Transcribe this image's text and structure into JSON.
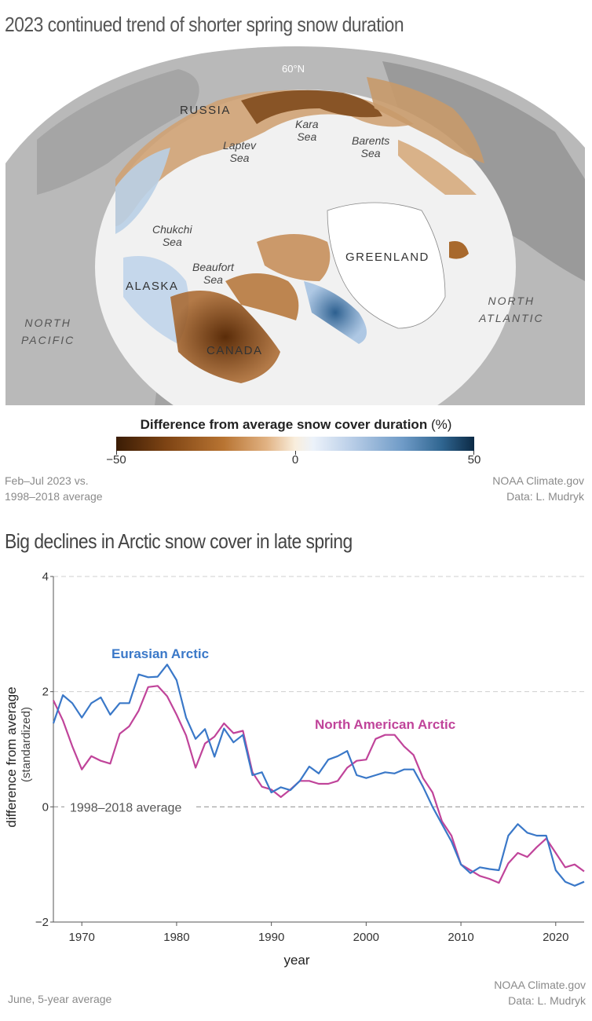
{
  "map": {
    "title": "2023 continued trend of shorter spring snow duration",
    "latitude_label": "60°N",
    "labels": {
      "russia": "RUSSIA",
      "kara_1": "Kara",
      "kara_2": "Sea",
      "barents_1": "Barents",
      "barents_2": "Sea",
      "laptev_1": "Laptev",
      "laptev_2": "Sea",
      "chukchi_1": "Chukchi",
      "chukchi_2": "Sea",
      "beaufort_1": "Beaufort",
      "beaufort_2": "Sea",
      "alaska": "ALASKA",
      "greenland": "GREENLAND",
      "canada": "CANADA",
      "north_pacific_1": "NORTH",
      "north_pacific_2": "PACIFIC",
      "north_atlantic_1": "NORTH",
      "north_atlantic_2": "ATLANTIC"
    },
    "legend": {
      "title_bold": "Difference from average snow cover duration",
      "title_unit": "(%)",
      "min_label": "−50",
      "mid_label": "0",
      "max_label": "50"
    },
    "footnote_left_1": "Feb–Jul 2023 vs.",
    "footnote_left_2": "1998–2018 average",
    "footnote_right_1": "NOAA Climate.gov",
    "footnote_right_2": "Data: L. Mudryk",
    "colors": {
      "negative": "#7a3f10",
      "positive": "#1f4f78",
      "ocean": "#bdbdbd",
      "neutral": "#f4f4f4"
    }
  },
  "chart": {
    "title": "Big declines in Arctic snow cover in late spring",
    "footnote_left": "June, 5-year average",
    "footnote_right_1": "NOAA Climate.gov",
    "footnote_right_2": "Data: L. Mudryk"
  },
  "chart_data": {
    "type": "line",
    "xlabel": "year",
    "ylabel": "difference from average",
    "ylabel_sub": "(standardized)",
    "xlim": [
      1967,
      2023
    ],
    "ylim": [
      -2,
      4
    ],
    "yticks": [
      -2,
      0,
      2,
      4
    ],
    "ytick_labels": [
      "−2",
      "0",
      "2",
      "4"
    ],
    "xticks": [
      1970,
      1980,
      1990,
      2000,
      2010,
      2020
    ],
    "xtick_labels": [
      "1970",
      "1980",
      "1990",
      "2000",
      "2010",
      "2020"
    ],
    "grid": true,
    "reference_line_label": "1998–2018 average",
    "series": [
      {
        "name": "Eurasian Arctic",
        "color": "#3a78c8",
        "x": [
          1967,
          1968,
          1969,
          1970,
          1971,
          1972,
          1973,
          1974,
          1975,
          1976,
          1977,
          1978,
          1979,
          1980,
          1981,
          1982,
          1983,
          1984,
          1985,
          1986,
          1987,
          1988,
          1989,
          1990,
          1991,
          1992,
          1993,
          1994,
          1995,
          1996,
          1997,
          1998,
          1999,
          2000,
          2001,
          2002,
          2003,
          2004,
          2005,
          2006,
          2007,
          2008,
          2009,
          2010,
          2011,
          2012,
          2013,
          2014,
          2015,
          2016,
          2017,
          2018,
          2019,
          2020,
          2021,
          2022,
          2023
        ],
        "y": [
          1.45,
          1.94,
          1.8,
          1.55,
          1.8,
          1.9,
          1.6,
          1.8,
          1.8,
          2.3,
          2.25,
          2.26,
          2.47,
          2.2,
          1.55,
          1.18,
          1.35,
          0.87,
          1.36,
          1.12,
          1.25,
          0.55,
          0.6,
          0.25,
          0.34,
          0.29,
          0.45,
          0.7,
          0.58,
          0.82,
          0.88,
          0.97,
          0.55,
          0.5,
          0.55,
          0.6,
          0.58,
          0.65,
          0.65,
          0.35,
          0.0,
          -0.3,
          -0.6,
          -1.0,
          -1.15,
          -1.05,
          -1.08,
          -1.1,
          -0.5,
          -0.3,
          -0.45,
          -0.5,
          -0.5,
          -1.1,
          -1.3,
          -1.37,
          -1.3
        ]
      },
      {
        "name": "North American Arctic",
        "color": "#c0449a",
        "x": [
          1967,
          1968,
          1969,
          1970,
          1971,
          1972,
          1973,
          1974,
          1975,
          1976,
          1977,
          1978,
          1979,
          1980,
          1981,
          1982,
          1983,
          1984,
          1985,
          1986,
          1987,
          1988,
          1989,
          1990,
          1991,
          1992,
          1993,
          1994,
          1995,
          1996,
          1997,
          1998,
          1999,
          2000,
          2001,
          2002,
          2003,
          2004,
          2005,
          2006,
          2007,
          2008,
          2009,
          2010,
          2011,
          2012,
          2013,
          2014,
          2015,
          2016,
          2017,
          2018,
          2019,
          2020,
          2021,
          2022,
          2023
        ],
        "y": [
          1.85,
          1.5,
          1.05,
          0.65,
          0.88,
          0.8,
          0.75,
          1.27,
          1.4,
          1.67,
          2.08,
          2.1,
          1.92,
          1.6,
          1.24,
          0.68,
          1.1,
          1.22,
          1.45,
          1.28,
          1.32,
          0.6,
          0.35,
          0.3,
          0.17,
          0.3,
          0.45,
          0.45,
          0.4,
          0.4,
          0.45,
          0.68,
          0.8,
          0.82,
          1.18,
          1.25,
          1.25,
          1.05,
          0.9,
          0.5,
          0.25,
          -0.25,
          -0.5,
          -1.0,
          -1.1,
          -1.2,
          -1.25,
          -1.32,
          -0.98,
          -0.8,
          -0.87,
          -0.7,
          -0.55,
          -0.8,
          -1.05,
          -1.0,
          -1.12
        ]
      }
    ]
  }
}
